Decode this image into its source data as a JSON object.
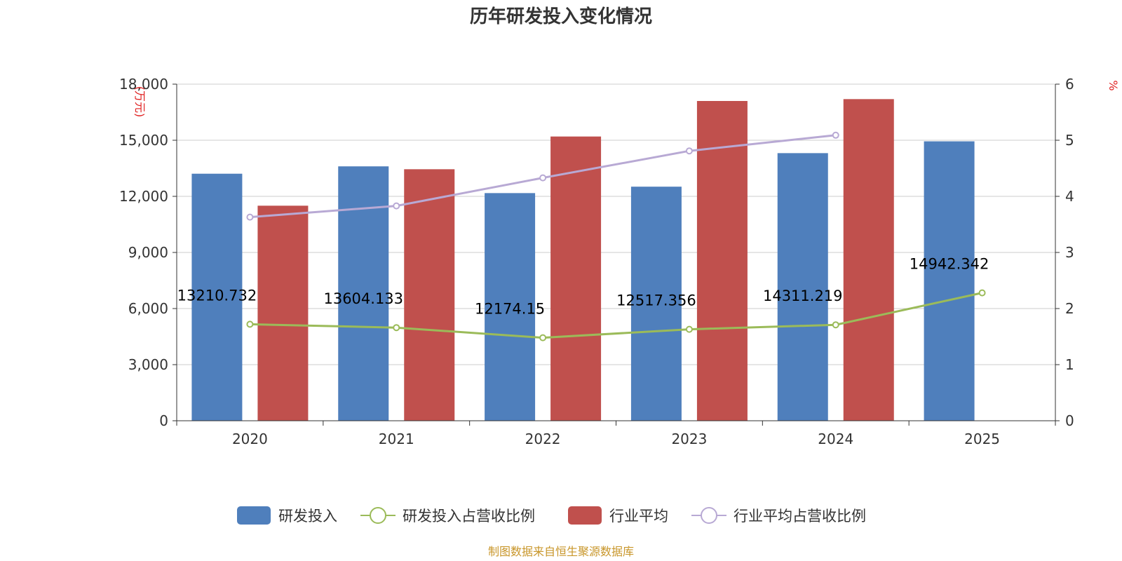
{
  "chart_data": {
    "type": "bar",
    "title": "历年研发投入变化情况",
    "categories": [
      "2020",
      "2021",
      "2022",
      "2023",
      "2024",
      "2025"
    ],
    "y_left": {
      "unit": "(万元)",
      "ticks": [
        "0",
        "3,000",
        "6,000",
        "9,000",
        "12,000",
        "15,000",
        "18,000"
      ],
      "min": 0,
      "max": 18000
    },
    "y_right": {
      "unit": "%",
      "ticks": [
        "0",
        "1",
        "2",
        "3",
        "4",
        "5",
        "6"
      ],
      "min": 0,
      "max": 6
    },
    "series": [
      {
        "name": "研发投入",
        "type": "bar",
        "axis": "left",
        "color": "#4f7fbc",
        "values": [
          13210.732,
          13604.133,
          12174.15,
          12517.356,
          14311.219,
          14942.342
        ]
      },
      {
        "name": "研发投入占营收比例",
        "type": "line",
        "axis": "right",
        "color": "#9bbb59",
        "values": [
          1.72,
          1.66,
          1.48,
          1.63,
          1.71,
          2.28
        ]
      },
      {
        "name": "行业平均",
        "type": "bar",
        "axis": "left",
        "color": "#c0504d",
        "values": [
          11500,
          13450,
          15200,
          17100,
          17200,
          null
        ]
      },
      {
        "name": "行业平均占营收比例",
        "type": "line",
        "axis": "right",
        "color": "#b8a9d4",
        "values": [
          3.63,
          3.83,
          4.33,
          4.81,
          5.09,
          null
        ]
      }
    ],
    "data_labels": [
      "13210.732",
      "13604.133",
      "12174.15",
      "12517.356",
      "14311.219",
      "14942.342"
    ],
    "source": "制图数据来自恒生聚源数据库"
  }
}
